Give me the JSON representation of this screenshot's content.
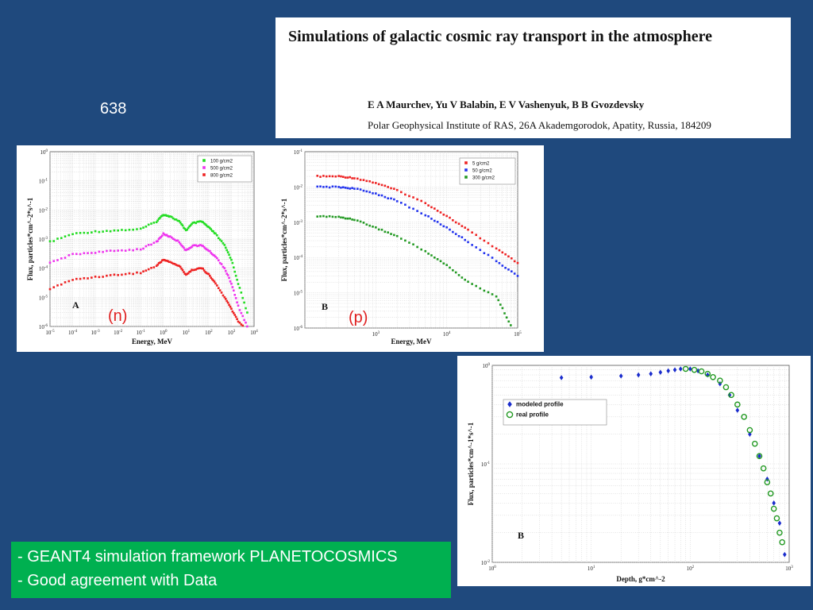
{
  "slide": {
    "number": "638"
  },
  "header": {
    "title": "Simulations of galactic cosmic ray transport in the atmosphere",
    "authors": "E A Maurchev,  Yu V Balabin, E V Vashenyuk, B B Gvozdevsky",
    "affiliation": "Polar Geophysical Institute of RAS, 26A Akademgorodok, Apatity, Russia, 184209"
  },
  "bullets": {
    "line1": "- GEANT4 simulation framework PLANETOCOSMICS",
    "line2": "- Good agreement with Data"
  },
  "colors": {
    "background": "#1f497d",
    "bullet_box": "#00b050",
    "overlay_label": "#e02020"
  },
  "chart_data": [
    {
      "type": "scatter",
      "panel_label": "A",
      "overlay_label": "(n)",
      "xlabel": "Energy, MeV",
      "ylabel": "Flux, particles*cm^-2*s^-1",
      "xscale": "log",
      "yscale": "log",
      "xlim": [
        1e-05,
        10000.0
      ],
      "ylim": [
        1e-06,
        1
      ],
      "xticks": [
        {
          "v": 1e-05,
          "b": "10",
          "e": "-5"
        },
        {
          "v": 0.0001,
          "b": "10",
          "e": "-4"
        },
        {
          "v": 0.001,
          "b": "10",
          "e": "-3"
        },
        {
          "v": 0.01,
          "b": "10",
          "e": "-2"
        },
        {
          "v": 0.1,
          "b": "10",
          "e": "-1"
        },
        {
          "v": 1.0,
          "b": "10",
          "e": "0"
        },
        {
          "v": 10.0,
          "b": "10",
          "e": "1"
        },
        {
          "v": 100.0,
          "b": "10",
          "e": "2"
        },
        {
          "v": 1000.0,
          "b": "10",
          "e": "3"
        },
        {
          "v": 10000.0,
          "b": "10",
          "e": "4"
        }
      ],
      "yticks": [
        {
          "v": 1e-06,
          "b": "10",
          "e": "-6"
        },
        {
          "v": 1e-05,
          "b": "10",
          "e": "-5"
        },
        {
          "v": 0.0001,
          "b": "10",
          "e": "-4"
        },
        {
          "v": 0.001,
          "b": "10",
          "e": "-3"
        },
        {
          "v": 0.01,
          "b": "10",
          "e": "-2"
        },
        {
          "v": 0.1,
          "b": "10",
          "e": "-1"
        },
        {
          "v": 1,
          "b": "10",
          "e": "0"
        }
      ],
      "grid": true,
      "legend_position": "top-right",
      "series": [
        {
          "name": "100 g/cm2",
          "color": "#22dd22",
          "x": [
            1e-05,
            0.0001,
            0.001,
            0.01,
            0.1,
            0.5,
            1,
            2,
            5,
            10,
            20,
            50,
            100,
            200,
            500,
            1000,
            2000,
            5000
          ],
          "y": [
            0.0008,
            0.0015,
            0.0018,
            0.002,
            0.0022,
            0.004,
            0.007,
            0.006,
            0.004,
            0.002,
            0.0035,
            0.004,
            0.0025,
            0.0015,
            0.0006,
            0.0002,
            3e-05,
            3e-06
          ]
        },
        {
          "name": "500 g/cm2",
          "color": "#ee33ee",
          "x": [
            1e-05,
            0.0001,
            0.001,
            0.01,
            0.1,
            0.5,
            1,
            2,
            5,
            10,
            20,
            50,
            100,
            200,
            500,
            1000,
            2000,
            5000
          ],
          "y": [
            0.00015,
            0.0003,
            0.00035,
            0.0004,
            0.00045,
            0.0008,
            0.0015,
            0.0012,
            0.0008,
            0.0004,
            0.0006,
            0.0006,
            0.0004,
            0.00025,
            0.0001,
            3e-05,
            5e-06,
            1e-06
          ]
        },
        {
          "name": "800 g/cm2",
          "color": "#ee2222",
          "x": [
            1e-05,
            0.0001,
            0.001,
            0.01,
            0.1,
            0.5,
            1,
            2,
            5,
            10,
            20,
            50,
            100,
            200,
            500,
            1000,
            2000,
            5000
          ],
          "y": [
            2e-05,
            4e-05,
            5e-05,
            6e-05,
            7e-05,
            0.00012,
            0.0002,
            0.00016,
            0.00012,
            6e-05,
            9e-05,
            0.0001,
            6e-05,
            3e-05,
            1e-05,
            4e-06,
            1.5e-06,
            8e-07
          ]
        }
      ]
    },
    {
      "type": "scatter",
      "panel_label": "B",
      "overlay_label": "(p)",
      "xlabel": "Energy, MeV",
      "ylabel": "Flux, particles*cm^-2*s^-1",
      "xscale": "log",
      "yscale": "log",
      "xlim": [
        100,
        100000
      ],
      "ylim": [
        1e-06,
        0.1
      ],
      "xticks": [
        {
          "v": 1000,
          "b": "10",
          "e": "3"
        },
        {
          "v": 10000,
          "b": "10",
          "e": "4"
        },
        {
          "v": 100000,
          "b": "10",
          "e": "5"
        }
      ],
      "yticks": [
        {
          "v": 1e-06,
          "b": "10",
          "e": "-6"
        },
        {
          "v": 1e-05,
          "b": "10",
          "e": "-5"
        },
        {
          "v": 0.0001,
          "b": "10",
          "e": "-4"
        },
        {
          "v": 0.001,
          "b": "10",
          "e": "-3"
        },
        {
          "v": 0.01,
          "b": "10",
          "e": "-2"
        },
        {
          "v": 0.1,
          "b": "10",
          "e": "-1"
        }
      ],
      "grid": true,
      "legend_position": "top-right",
      "series": [
        {
          "name": "5 g/cm2",
          "color": "#ee2222",
          "x": [
            150,
            300,
            500,
            1000,
            2000,
            5000,
            10000,
            20000,
            50000,
            100000
          ],
          "y": [
            0.02,
            0.02,
            0.018,
            0.013,
            0.008,
            0.0035,
            0.0015,
            0.0006,
            0.00018,
            7e-05
          ]
        },
        {
          "name": "50 g/cm2",
          "color": "#2233ee",
          "x": [
            150,
            300,
            500,
            1000,
            2000,
            5000,
            10000,
            20000,
            50000,
            100000
          ],
          "y": [
            0.01,
            0.01,
            0.009,
            0.0065,
            0.004,
            0.0016,
            0.0007,
            0.00028,
            8e-05,
            3e-05
          ]
        },
        {
          "name": "300 g/cm2",
          "color": "#229922",
          "x": [
            150,
            300,
            500,
            1000,
            2000,
            5000,
            10000,
            20000,
            50000,
            80000
          ],
          "y": [
            0.0015,
            0.0014,
            0.0012,
            0.0007,
            0.0004,
            0.00015,
            6e-05,
            2e-05,
            8e-06,
            1.2e-06
          ]
        }
      ]
    },
    {
      "type": "scatter",
      "panel_label": "B",
      "xlabel": "Depth, g*cm^-2",
      "ylabel": "Flux, particles*cm^-1*s^-1",
      "xscale": "log",
      "yscale": "log",
      "xlim": [
        1,
        1000
      ],
      "ylim": [
        0.01,
        1
      ],
      "xticks": [
        {
          "v": 1,
          "b": "10",
          "e": "0"
        },
        {
          "v": 10,
          "b": "10",
          "e": "1"
        },
        {
          "v": 100,
          "b": "10",
          "e": "2"
        },
        {
          "v": 1000,
          "b": "10",
          "e": "3"
        }
      ],
      "yticks": [
        {
          "v": 0.01,
          "b": "10",
          "e": "-2"
        },
        {
          "v": 0.1,
          "b": "10",
          "e": "-1"
        },
        {
          "v": 1,
          "b": "10",
          "e": "0"
        }
      ],
      "grid": true,
      "legend_position": "top-left",
      "series": [
        {
          "name": "modeled profile",
          "color": "#1a2ccc",
          "marker": "diamond",
          "x": [
            5,
            10,
            20,
            30,
            40,
            50,
            60,
            70,
            80,
            100,
            120,
            150,
            200,
            250,
            300,
            400,
            500,
            600,
            700,
            800,
            900
          ],
          "y": [
            0.75,
            0.76,
            0.78,
            0.8,
            0.82,
            0.85,
            0.88,
            0.9,
            0.92,
            0.92,
            0.88,
            0.8,
            0.65,
            0.5,
            0.35,
            0.2,
            0.12,
            0.07,
            0.04,
            0.025,
            0.012
          ]
        },
        {
          "name": "real profile",
          "color": "#229922",
          "marker": "circle",
          "x": [
            90,
            110,
            130,
            150,
            170,
            200,
            230,
            260,
            300,
            350,
            400,
            450,
            500,
            550,
            600,
            650,
            700,
            750,
            800,
            850
          ],
          "y": [
            0.92,
            0.9,
            0.87,
            0.82,
            0.76,
            0.7,
            0.6,
            0.5,
            0.4,
            0.3,
            0.22,
            0.16,
            0.12,
            0.09,
            0.065,
            0.05,
            0.035,
            0.028,
            0.02,
            0.016
          ]
        }
      ]
    }
  ]
}
